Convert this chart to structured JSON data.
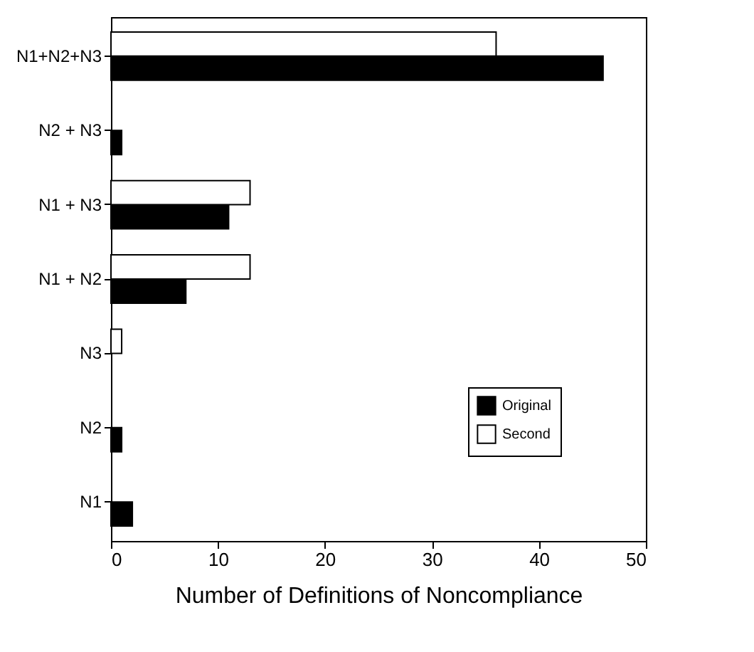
{
  "chart_data": {
    "type": "bar",
    "orientation": "horizontal",
    "xlabel": "Number of Definitions of Noncompliance",
    "categories": [
      "N1+N2+N3",
      "N2 + N3",
      "N1 + N3",
      "N1 + N2",
      "N3",
      "N2",
      "N1"
    ],
    "series": [
      {
        "name": "Original",
        "color": "#000000",
        "values": [
          46,
          1,
          11,
          7,
          0,
          1,
          2
        ]
      },
      {
        "name": "Second",
        "color": "#ffffff",
        "values": [
          36,
          0,
          13,
          13,
          1,
          0,
          0
        ]
      }
    ],
    "xlim": [
      0,
      50
    ],
    "xticks": [
      0,
      10,
      20,
      30,
      40,
      50
    ],
    "legend": "bottom right",
    "grid": false
  }
}
